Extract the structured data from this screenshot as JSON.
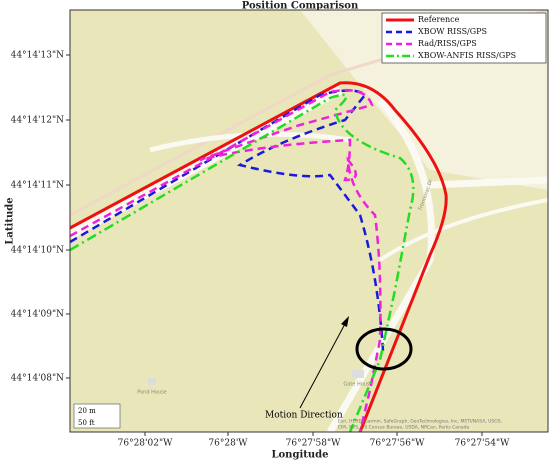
{
  "title": "Position Comparison",
  "x_axis_label": "Longitude",
  "y_axis_label": "Latitude",
  "xticks": [
    "76°28'02\"W",
    "76°28'W",
    "76°27'58\"W",
    "76°27'56\"W",
    "76°27'54\"W"
  ],
  "yticks": [
    "44°14'13\"N",
    "44°14'12\"N",
    "44°14'11\"N",
    "44°14'10\"N",
    "44°14'09\"N",
    "44°14'08\"N"
  ],
  "legend": [
    "Reference",
    "XBOW RISS/GPS",
    "Rad/RISS/GPS",
    "XBOW-ANFIS RISS/GPS"
  ],
  "annotation": "Motion Direction",
  "scale_bar": [
    "20 m",
    "50 ft"
  ],
  "map_labels": [
    "Frontenac Dr",
    "Pond House",
    "Gate House"
  ],
  "attribution": [
    "Esri, HERE, Garmin, SafeGraph, GeoTechnologies, Inc, METI/NASA, USGS,",
    "EPA, NPS, US Census Bureau, USDA, NRCan, Parks Canada"
  ]
}
